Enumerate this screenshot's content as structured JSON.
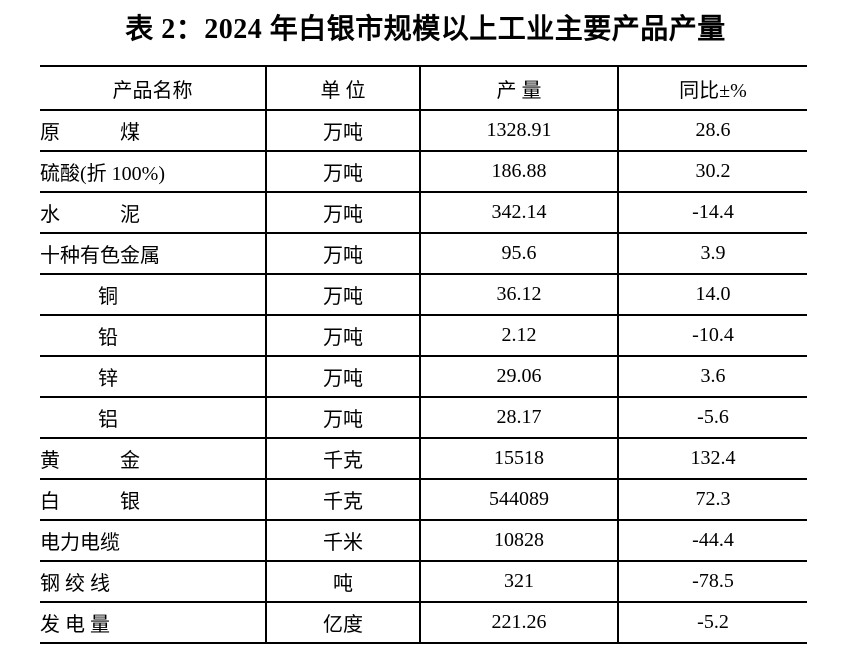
{
  "title": "表 2：2024 年白银市规模以上工业主要产品产量",
  "table": {
    "headers": [
      "产品名称",
      "单 位",
      "产 量",
      "同比±%"
    ],
    "rows": [
      {
        "name": "原　　　煤",
        "unit": "万吨",
        "output": "1328.91",
        "yoy": "28.6",
        "indent": false
      },
      {
        "name": "硫酸(折 100%)",
        "unit": "万吨",
        "output": "186.88",
        "yoy": "30.2",
        "indent": false
      },
      {
        "name": "水　　　泥",
        "unit": "万吨",
        "output": "342.14",
        "yoy": "-14.4",
        "indent": false
      },
      {
        "name": "十种有色金属",
        "unit": "万吨",
        "output": "95.6",
        "yoy": "3.9",
        "indent": false
      },
      {
        "name": "铜",
        "unit": "万吨",
        "output": "36.12",
        "yoy": "14.0",
        "indent": true
      },
      {
        "name": "铅",
        "unit": "万吨",
        "output": "2.12",
        "yoy": "-10.4",
        "indent": true
      },
      {
        "name": "锌",
        "unit": "万吨",
        "output": "29.06",
        "yoy": "3.6",
        "indent": true
      },
      {
        "name": "铝",
        "unit": "万吨",
        "output": "28.17",
        "yoy": "-5.6",
        "indent": true
      },
      {
        "name": "黄　　　金",
        "unit": "千克",
        "output": "15518",
        "yoy": "132.4",
        "indent": false
      },
      {
        "name": "白　　　银",
        "unit": "千克",
        "output": "544089",
        "yoy": "72.3",
        "indent": false
      },
      {
        "name": "电力电缆",
        "unit": "千米",
        "output": "10828",
        "yoy": "-44.4",
        "indent": false
      },
      {
        "name": "钢 绞 线",
        "unit": "吨",
        "output": "321",
        "yoy": "-78.5",
        "indent": false
      },
      {
        "name": "发 电 量",
        "unit": "亿度",
        "output": "221.26",
        "yoy": "-5.2",
        "indent": false
      }
    ]
  }
}
